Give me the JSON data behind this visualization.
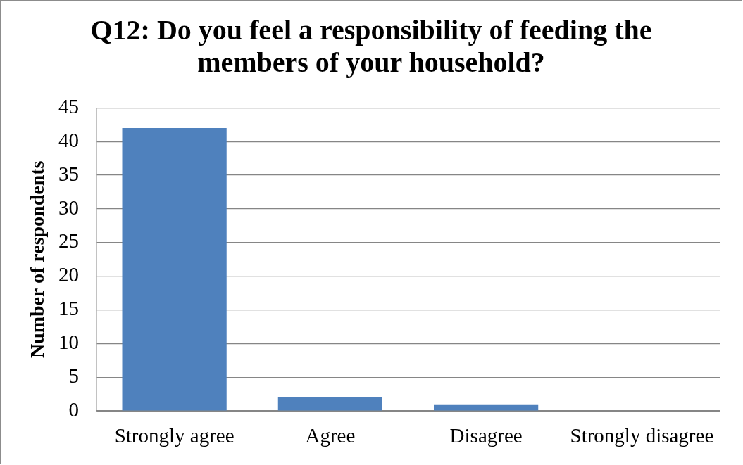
{
  "chart_data": {
    "type": "bar",
    "title": "Q12: Do you feel a responsibility of feeding the members of your household?",
    "ylabel": "Number of respondents",
    "categories": [
      "Strongly agree",
      "Agree",
      "Disagree",
      "Strongly disagree"
    ],
    "values": [
      42,
      2,
      1,
      0
    ],
    "color": "#4f81bd",
    "ylim": [
      0,
      45
    ],
    "yticks": [
      0,
      5,
      10,
      15,
      20,
      25,
      30,
      35,
      40,
      45
    ],
    "grid": "y"
  }
}
